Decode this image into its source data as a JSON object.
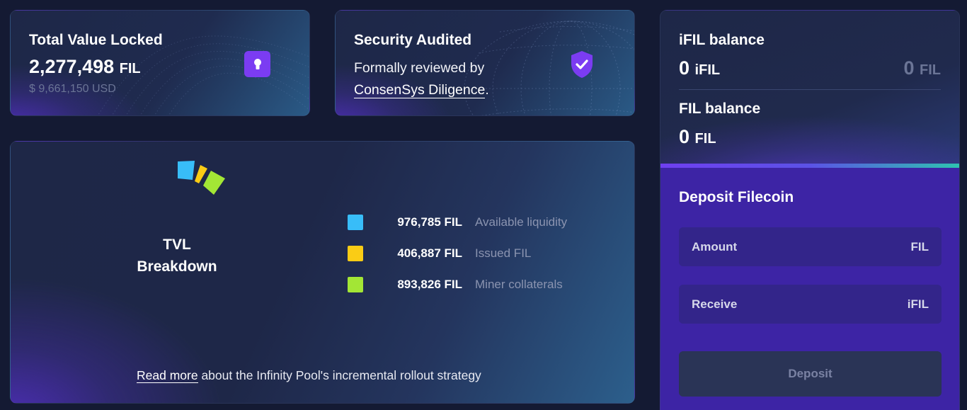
{
  "tvl_card": {
    "title": "Total Value Locked",
    "value": "2,277,498",
    "unit": "FIL",
    "usd": "$ 9,661,150 USD"
  },
  "audit_card": {
    "title": "Security Audited",
    "text_before": "Formally reviewed by",
    "link": "ConsenSys Diligence",
    "text_after": "."
  },
  "breakdown": {
    "title_line1": "TVL",
    "title_line2": "Breakdown",
    "legend": [
      {
        "value": "976,785 FIL",
        "label": "Available liquidity",
        "color": "#38bdf8"
      },
      {
        "value": "406,887 FIL",
        "label": "Issued FIL",
        "color": "#facc15"
      },
      {
        "value": "893,826 FIL",
        "label": "Miner collaterals",
        "color": "#a3e635"
      }
    ],
    "read_more_link": "Read more",
    "read_more_text": " about the Infinity Pool's incremental rollout strategy"
  },
  "side": {
    "ifil_title": "iFIL balance",
    "ifil_value": "0",
    "ifil_unit": "iFIL",
    "ifil_fil_value": "0",
    "ifil_fil_unit": "FIL",
    "fil_title": "FIL balance",
    "fil_value": "0",
    "fil_unit": "FIL",
    "deposit_title": "Deposit Filecoin",
    "amount_label": "Amount",
    "amount_unit": "FIL",
    "receive_label": "Receive",
    "receive_unit": "iFIL",
    "deposit_button": "Deposit"
  },
  "colors": {
    "accent_purple": "#7b3cf2",
    "deposit_bg": "#3d24a5"
  }
}
